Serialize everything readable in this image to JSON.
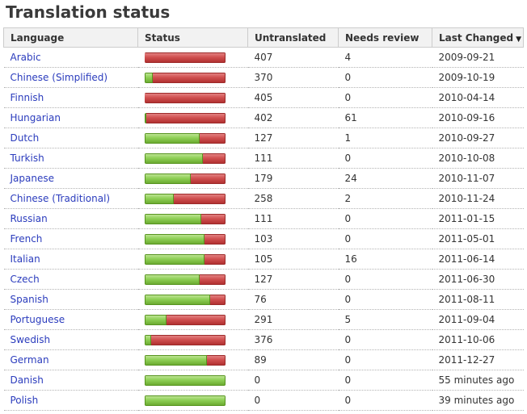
{
  "page": {
    "title": "Translation status"
  },
  "table": {
    "columns": {
      "language": "Language",
      "status": "Status",
      "untranslated": "Untranslated",
      "needs_review": "Needs review",
      "last_changed": "Last Changed",
      "sort_indicator": "▼"
    },
    "rows": [
      {
        "language": "Arabic",
        "translated_pct": 0,
        "untranslated": "407",
        "needs_review": "4",
        "last_changed": "2009-09-21"
      },
      {
        "language": "Chinese (Simplified)",
        "translated_pct": 10,
        "untranslated": "370",
        "needs_review": "0",
        "last_changed": "2009-10-19"
      },
      {
        "language": "Finnish",
        "translated_pct": 0,
        "untranslated": "405",
        "needs_review": "0",
        "last_changed": "2010-04-14"
      },
      {
        "language": "Hungarian",
        "translated_pct": 2,
        "untranslated": "402",
        "needs_review": "61",
        "last_changed": "2010-09-16"
      },
      {
        "language": "Dutch",
        "translated_pct": 68,
        "untranslated": "127",
        "needs_review": "1",
        "last_changed": "2010-09-27"
      },
      {
        "language": "Turkish",
        "translated_pct": 72,
        "untranslated": "111",
        "needs_review": "0",
        "last_changed": "2010-10-08"
      },
      {
        "language": "Japanese",
        "translated_pct": 57,
        "untranslated": "179",
        "needs_review": "24",
        "last_changed": "2010-11-07"
      },
      {
        "language": "Chinese (Traditional)",
        "translated_pct": 36,
        "untranslated": "258",
        "needs_review": "2",
        "last_changed": "2010-11-24"
      },
      {
        "language": "Russian",
        "translated_pct": 70,
        "untranslated": "111",
        "needs_review": "0",
        "last_changed": "2011-01-15"
      },
      {
        "language": "French",
        "translated_pct": 74,
        "untranslated": "103",
        "needs_review": "0",
        "last_changed": "2011-05-01"
      },
      {
        "language": "Italian",
        "translated_pct": 74,
        "untranslated": "105",
        "needs_review": "16",
        "last_changed": "2011-06-14"
      },
      {
        "language": "Czech",
        "translated_pct": 68,
        "untranslated": "127",
        "needs_review": "0",
        "last_changed": "2011-06-30"
      },
      {
        "language": "Spanish",
        "translated_pct": 81,
        "untranslated": "76",
        "needs_review": "0",
        "last_changed": "2011-08-11"
      },
      {
        "language": "Portuguese",
        "translated_pct": 27,
        "untranslated": "291",
        "needs_review": "5",
        "last_changed": "2011-09-04"
      },
      {
        "language": "Swedish",
        "translated_pct": 8,
        "untranslated": "376",
        "needs_review": "0",
        "last_changed": "2011-10-06"
      },
      {
        "language": "German",
        "translated_pct": 77,
        "untranslated": "89",
        "needs_review": "0",
        "last_changed": "2011-12-27"
      },
      {
        "language": "Danish",
        "translated_pct": 100,
        "untranslated": "0",
        "needs_review": "0",
        "last_changed": "55 minutes ago"
      },
      {
        "language": "Polish",
        "translated_pct": 100,
        "untranslated": "0",
        "needs_review": "0",
        "last_changed": "39 minutes ago"
      }
    ],
    "colors": {
      "link_blue": "#2b3cbd",
      "bar_green": "#6cab31",
      "bar_red": "#b23131",
      "header_bg": "#f2f2f2",
      "border_gray": "#cccccc"
    }
  }
}
